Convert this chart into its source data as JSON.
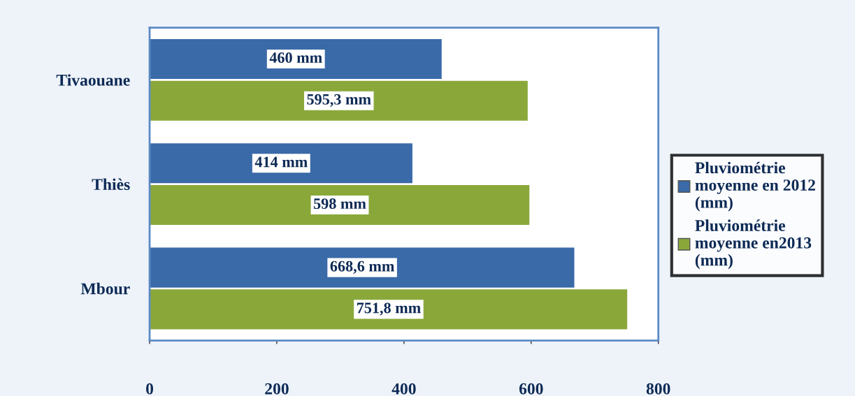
{
  "chart_data": {
    "type": "bar",
    "orientation": "horizontal",
    "categories": [
      "Tivaouane",
      "Thiès",
      "Mbour"
    ],
    "series": [
      {
        "name": "Pluviométrie moyenne en 2012 (mm)",
        "color": "#3a6aa8",
        "values": [
          460,
          414,
          668.6
        ],
        "value_labels": [
          "460 mm",
          "414 mm",
          "668,6 mm"
        ]
      },
      {
        "name": "Pluviométrie moyenne en2013 (mm)",
        "color": "#8aa83a",
        "values": [
          595.3,
          598,
          751.8
        ],
        "value_labels": [
          "595,3 mm",
          "598 mm",
          "751,8 mm"
        ]
      }
    ],
    "xlim": [
      0,
      800
    ],
    "xticks": [
      0,
      200,
      400,
      600,
      800
    ],
    "grid": false,
    "legend": "right"
  }
}
